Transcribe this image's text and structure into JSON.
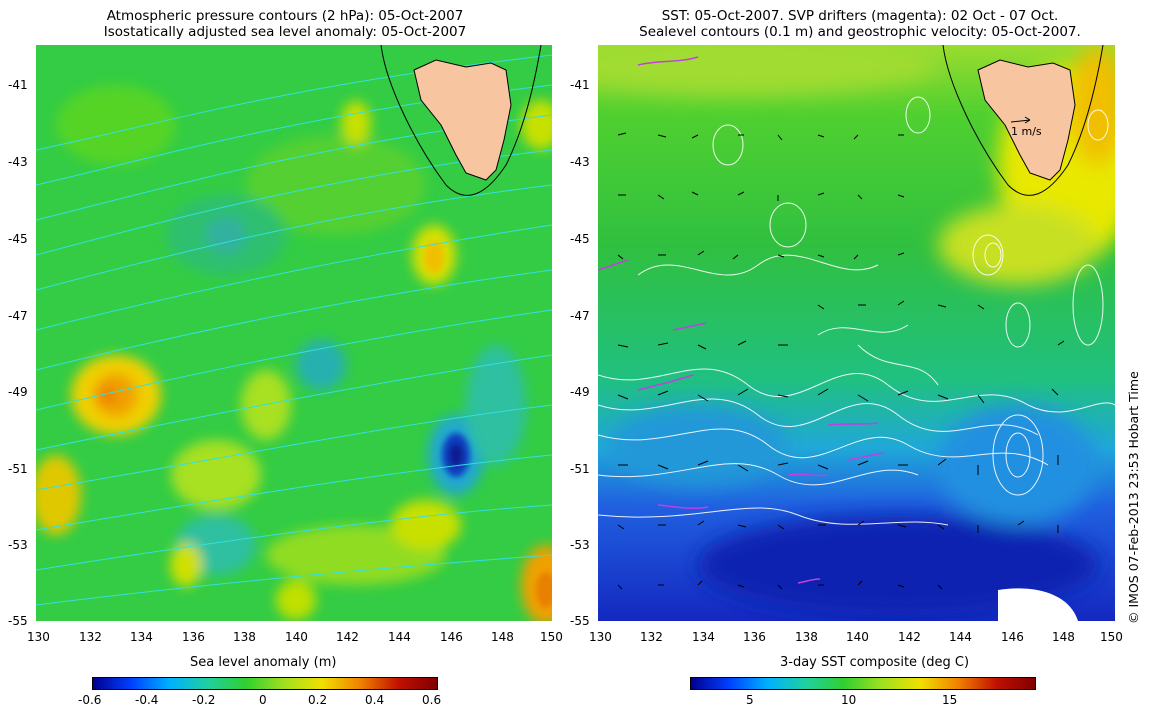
{
  "left_panel": {
    "title_line1": "Atmospheric pressure contours (2 hPa): 05-Oct-2007",
    "title_line2": "Isostatically adjusted sea level anomaly: 05-Oct-2007",
    "lat_ticks": [
      "-41",
      "-43",
      "-45",
      "-47",
      "-49",
      "-51",
      "-53",
      "-55"
    ],
    "lon_ticks": [
      "130",
      "132",
      "134",
      "136",
      "138",
      "140",
      "142",
      "144",
      "146",
      "148",
      "150"
    ],
    "colorbar": {
      "label": "Sea level anomaly (m)",
      "ticks": [
        "-0.6",
        "-0.4",
        "-0.2",
        "0",
        "0.2",
        "0.4",
        "0.6"
      ]
    }
  },
  "right_panel": {
    "title_line1": "SST: 05-Oct-2007. SVP drifters (magenta): 02 Oct - 07 Oct.",
    "title_line2": "Sealevel contours (0.1 m) and geostrophic velocity: 05-Oct-2007.",
    "lat_ticks": [
      "-41",
      "-43",
      "-45",
      "-47",
      "-49",
      "-51",
      "-53",
      "-55"
    ],
    "lon_ticks": [
      "130",
      "132",
      "134",
      "136",
      "138",
      "140",
      "142",
      "144",
      "146",
      "148",
      "150"
    ],
    "velocity_scale_label": "1 m/s",
    "colorbar": {
      "label": "3-day SST composite (deg C)",
      "ticks": [
        "5",
        "10",
        "15"
      ]
    }
  },
  "credit": "© IMOS 07-Feb-2013 23:53 Hobart Time",
  "colors": {
    "land": "#f7c59f",
    "ssh_base": "#33cc33",
    "sst_cold": "#1f3fd6",
    "sst_warm": "#e8e800",
    "pressure_contour": "#33e0e0",
    "sealevel_contour": "#ffffff",
    "drifter": "#c040e0"
  }
}
